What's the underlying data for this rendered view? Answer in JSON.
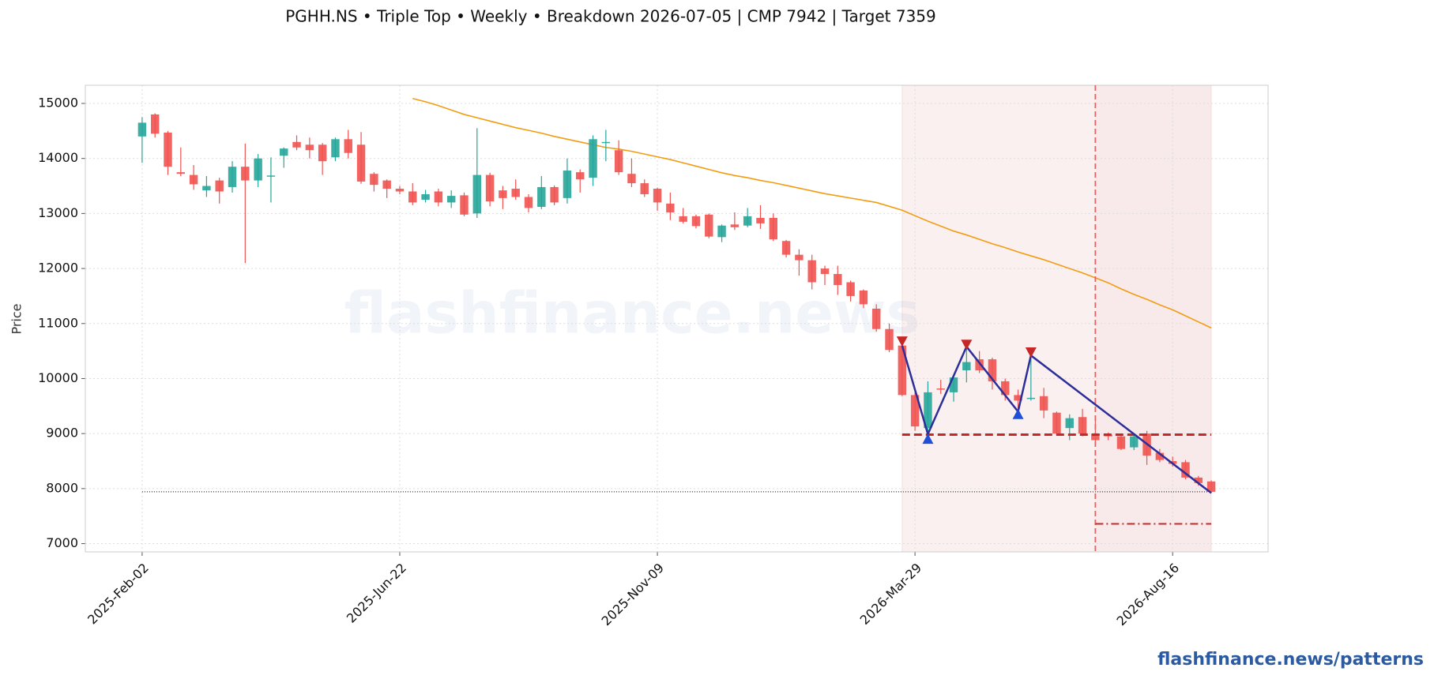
{
  "chart_data": {
    "type": "candlestick",
    "title": "PGHH.NS  •  Triple Top  •  Weekly  •  Breakdown 2026-07-05  |  CMP 7942  |  Target 7359",
    "y_label": "Price",
    "watermark": "flashfinance.news",
    "footer": "flashfinance.news/patterns",
    "categories": [
      "2025-Feb-02",
      null,
      null,
      null,
      null,
      null,
      null,
      null,
      null,
      null,
      null,
      null,
      null,
      null,
      null,
      null,
      null,
      null,
      null,
      null,
      "2025-Jun-22",
      null,
      null,
      null,
      null,
      null,
      null,
      null,
      null,
      null,
      null,
      null,
      null,
      null,
      null,
      null,
      null,
      null,
      null,
      null,
      "2025-Nov-09",
      null,
      null,
      null,
      null,
      null,
      null,
      null,
      null,
      null,
      null,
      null,
      null,
      null,
      null,
      null,
      null,
      null,
      null,
      null,
      "2026-Mar-29",
      null,
      null,
      null,
      null,
      null,
      null,
      null,
      null,
      null,
      null,
      null,
      null,
      null,
      null,
      null,
      null,
      null,
      null,
      null,
      "2026-Aug-16",
      null,
      null,
      null
    ],
    "open": [
      14400,
      14800,
      14470,
      13750,
      13700,
      13420,
      13600,
      13480,
      13850,
      13600,
      13670,
      14050,
      14300,
      14250,
      14250,
      14020,
      14350,
      14250,
      13720,
      13600,
      13450,
      13400,
      13250,
      13400,
      13200,
      13330,
      13000,
      13700,
      13420,
      13450,
      13300,
      13120,
      13480,
      13280,
      13750,
      13650,
      14280,
      14150,
      13720,
      13550,
      13450,
      13180,
      12950,
      12950,
      12980,
      12570,
      12800,
      12780,
      12920,
      12920,
      12500,
      12250,
      12150,
      12000,
      11900,
      11750,
      11600,
      11270,
      10900,
      10600,
      9700,
      9100,
      9820,
      9750,
      10150,
      10350,
      10350,
      9950,
      9700,
      9630,
      9680,
      9380,
      9100,
      9300,
      9000,
      8980,
      8950,
      8750,
      9000,
      8650,
      8500,
      8480,
      8200,
      8130
    ],
    "high": [
      14750,
      14820,
      14500,
      14200,
      13880,
      13680,
      13650,
      13950,
      14270,
      14080,
      14020,
      14200,
      14420,
      14380,
      14280,
      14380,
      14520,
      14480,
      13750,
      13620,
      13500,
      13550,
      13430,
      13450,
      13420,
      13380,
      14550,
      13740,
      13500,
      13620,
      13350,
      13680,
      13510,
      14000,
      13800,
      14420,
      14520,
      14330,
      14000,
      13620,
      13470,
      13380,
      13100,
      12980,
      13000,
      12800,
      13020,
      13100,
      13150,
      13000,
      12520,
      12350,
      12250,
      12050,
      12050,
      11780,
      11620,
      11350,
      11000,
      10650,
      9750,
      9950,
      9980,
      10050,
      10580,
      10500,
      10380,
      10000,
      9800,
      10380,
      9830,
      9400,
      9350,
      9450,
      9250,
      9020,
      8980,
      8980,
      9050,
      8720,
      8580,
      8520,
      8230,
      8150
    ],
    "low": [
      13920,
      14380,
      13700,
      13680,
      13430,
      13300,
      13180,
      13380,
      12100,
      13480,
      13200,
      13830,
      14150,
      14000,
      13700,
      13950,
      14000,
      13540,
      13400,
      13280,
      13350,
      13150,
      13200,
      13130,
      13100,
      12950,
      12920,
      13130,
      13080,
      13250,
      13020,
      13080,
      13150,
      13180,
      13380,
      13500,
      13950,
      13700,
      13480,
      13300,
      13050,
      12880,
      12820,
      12730,
      12550,
      12480,
      12700,
      12750,
      12720,
      12500,
      12200,
      11870,
      11620,
      11700,
      11520,
      11400,
      11280,
      10850,
      10480,
      9680,
      9050,
      8980,
      9720,
      9580,
      9930,
      10100,
      9800,
      9600,
      9350,
      9600,
      9280,
      8980,
      8880,
      8950,
      8850,
      8880,
      8700,
      8700,
      8430,
      8480,
      8400,
      8170,
      8050,
      7920
    ],
    "close": [
      14650,
      14450,
      13850,
      13720,
      13530,
      13500,
      13400,
      13850,
      13600,
      14000,
      13690,
      14180,
      14200,
      14150,
      13950,
      14350,
      14100,
      13580,
      13520,
      13450,
      13400,
      13200,
      13350,
      13200,
      13320,
      12980,
      13700,
      13220,
      13280,
      13300,
      13100,
      13480,
      13200,
      13780,
      13620,
      14350,
      14300,
      13750,
      13550,
      13350,
      13200,
      13020,
      12850,
      12770,
      12580,
      12780,
      12750,
      12950,
      12820,
      12530,
      12250,
      12150,
      11750,
      11900,
      11700,
      11500,
      11350,
      10900,
      10520,
      9700,
      9130,
      9750,
      9800,
      10020,
      10300,
      10150,
      9950,
      9700,
      9600,
      9650,
      9420,
      9000,
      9280,
      9000,
      8880,
      8950,
      8720,
      8950,
      8600,
      8520,
      8450,
      8200,
      8100,
      7942
    ],
    "up_color": "#26a69a",
    "down_color": "#ef5350",
    "ylim": [
      6850,
      15330
    ],
    "yticks": [
      7000,
      8000,
      9000,
      10000,
      11000,
      12000,
      13000,
      14000,
      15000
    ],
    "grid": true,
    "sma": {
      "color": "#f39c12",
      "values": [
        null,
        null,
        null,
        null,
        null,
        null,
        null,
        null,
        null,
        null,
        null,
        null,
        null,
        null,
        null,
        null,
        null,
        null,
        null,
        null,
        null,
        15090,
        15030,
        14960,
        14880,
        14800,
        14740,
        14680,
        14620,
        14560,
        14510,
        14460,
        14400,
        14350,
        14300,
        14250,
        14200,
        14170,
        14130,
        14080,
        14030,
        13980,
        13920,
        13860,
        13800,
        13740,
        13690,
        13650,
        13600,
        13560,
        13510,
        13460,
        13410,
        13360,
        13320,
        13280,
        13240,
        13200,
        13130,
        13060,
        12960,
        12860,
        12770,
        12680,
        12610,
        12530,
        12450,
        12380,
        12300,
        12230,
        12160,
        12080,
        12000,
        11920,
        11830,
        11740,
        11630,
        11530,
        11440,
        11340,
        11250,
        11140,
        11030,
        10920
      ]
    },
    "pattern": {
      "color": "#2e2e9a",
      "x": [
        59,
        61,
        64,
        68,
        69,
        83
      ],
      "values": [
        10600,
        8990,
        10580,
        9400,
        10420,
        7920
      ]
    },
    "peaks": {
      "color": "#c62828",
      "x": [
        59,
        64,
        69
      ],
      "values": [
        10680,
        10620,
        10480
      ]
    },
    "troughs": {
      "color": "#1f4fd6",
      "x": [
        61,
        68
      ],
      "values": [
        8900,
        9350
      ]
    },
    "pattern_range": [
      59,
      83
    ],
    "breakdown_x": 74,
    "neckline": {
      "value": 8980,
      "color": "#c62828"
    },
    "target": {
      "value": 7359,
      "color": "#c62828"
    },
    "cmp": {
      "value": 7942,
      "color": "#333333"
    }
  }
}
